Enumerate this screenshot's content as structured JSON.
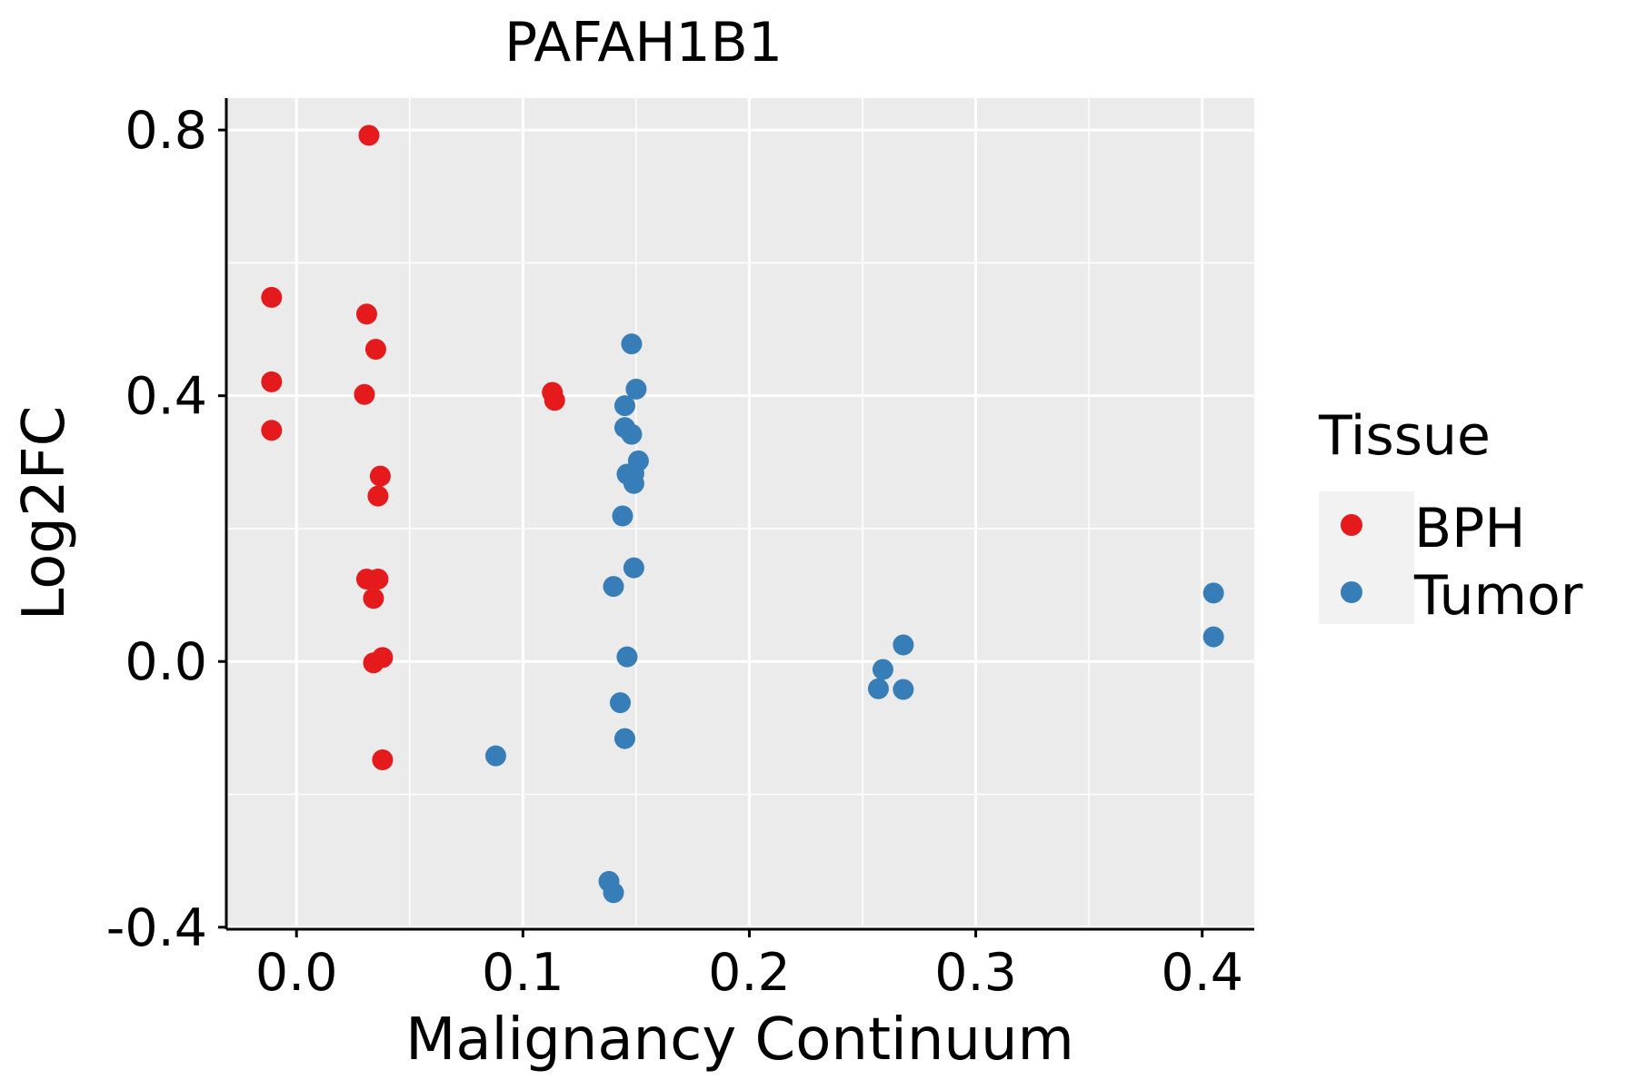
{
  "chart_data": {
    "type": "scatter",
    "title": "PAFAH1B1",
    "xlabel": "Malignancy Continuum",
    "ylabel": "Log2FC",
    "xlim": [
      -0.031,
      0.423
    ],
    "ylim": [
      -0.403,
      0.848
    ],
    "x_ticks": [
      0.0,
      0.1,
      0.2,
      0.3,
      0.4
    ],
    "x_tick_labels": [
      "0.0",
      "0.1",
      "0.2",
      "0.3",
      "0.4"
    ],
    "y_ticks": [
      -0.4,
      0.0,
      0.4,
      0.8
    ],
    "y_tick_labels": [
      "-0.4",
      "0.0",
      "0.4",
      "0.8"
    ],
    "x_minor_grid": [
      0.05,
      0.15,
      0.25,
      0.35
    ],
    "y_minor_grid": [
      -0.2,
      0.2,
      0.6
    ],
    "grid": true,
    "legend": {
      "title": "Tissue",
      "position": "right"
    },
    "series": [
      {
        "name": "BPH",
        "color": "#e41a1c",
        "points": [
          [
            0.032,
            0.792
          ],
          [
            -0.011,
            0.548
          ],
          [
            0.031,
            0.523
          ],
          [
            0.035,
            0.47
          ],
          [
            -0.011,
            0.421
          ],
          [
            0.03,
            0.402
          ],
          [
            -0.011,
            0.348
          ],
          [
            0.037,
            0.279
          ],
          [
            0.036,
            0.249
          ],
          [
            0.031,
            0.124
          ],
          [
            0.036,
            0.124
          ],
          [
            0.034,
            0.095
          ],
          [
            0.038,
            0.006
          ],
          [
            0.034,
            -0.002
          ],
          [
            0.038,
            -0.148
          ],
          [
            0.113,
            0.405
          ],
          [
            0.114,
            0.393
          ]
        ]
      },
      {
        "name": "Tumor",
        "color": "#377eb8",
        "points": [
          [
            0.148,
            0.478
          ],
          [
            0.15,
            0.41
          ],
          [
            0.145,
            0.385
          ],
          [
            0.145,
            0.352
          ],
          [
            0.148,
            0.342
          ],
          [
            0.151,
            0.302
          ],
          [
            0.146,
            0.282
          ],
          [
            0.149,
            0.283
          ],
          [
            0.149,
            0.268
          ],
          [
            0.144,
            0.219
          ],
          [
            0.149,
            0.141
          ],
          [
            0.14,
            0.113
          ],
          [
            0.146,
            0.007
          ],
          [
            0.143,
            -0.062
          ],
          [
            0.145,
            -0.116
          ],
          [
            0.088,
            -0.142
          ],
          [
            0.138,
            -0.331
          ],
          [
            0.14,
            -0.348
          ],
          [
            0.268,
            0.025
          ],
          [
            0.259,
            -0.012
          ],
          [
            0.257,
            -0.041
          ],
          [
            0.268,
            -0.042
          ],
          [
            0.405,
            0.103
          ],
          [
            0.405,
            0.037
          ]
        ]
      }
    ]
  }
}
